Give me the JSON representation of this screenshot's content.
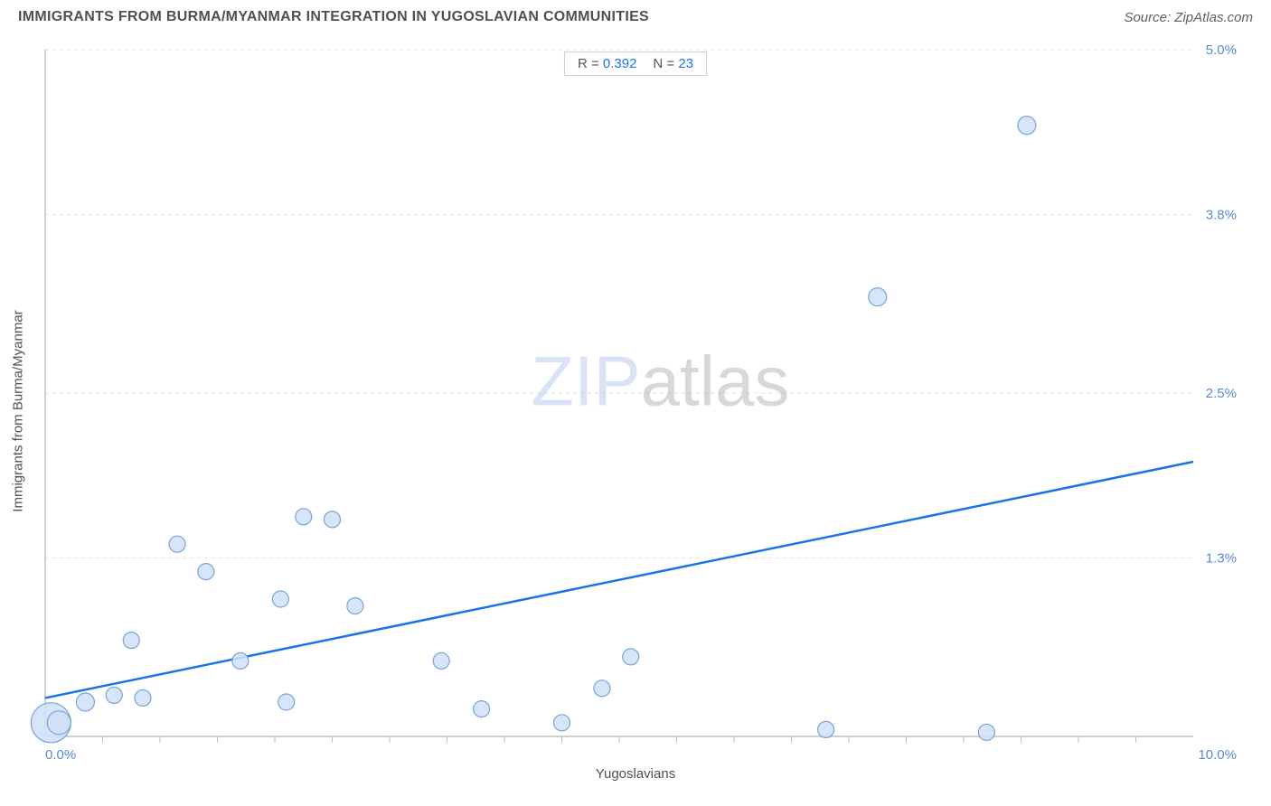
{
  "title": "IMMIGRANTS FROM BURMA/MYANMAR INTEGRATION IN YUGOSLAVIAN COMMUNITIES",
  "source": "Source: ZipAtlas.com",
  "watermark_zip": "ZIP",
  "watermark_atlas": "atlas",
  "stats": {
    "r_label": "R =",
    "r_value": "0.392",
    "n_label": "N =",
    "n_value": "23"
  },
  "chart": {
    "type": "scatter",
    "xlabel": "Yugoslavians",
    "ylabel": "Immigrants from Burma/Myanmar",
    "xlim": [
      0.0,
      10.0
    ],
    "ylim": [
      0.0,
      5.0
    ],
    "x_min_label": "0.0%",
    "x_max_label": "10.0%",
    "y_tick_values": [
      1.3,
      2.5,
      3.8,
      5.0
    ],
    "y_tick_labels": [
      "1.3%",
      "2.5%",
      "3.8%",
      "5.0%"
    ],
    "x_tick_values": [
      0.5,
      1.0,
      1.5,
      2.0,
      2.5,
      3.0,
      3.5,
      4.0,
      4.5,
      5.0,
      5.5,
      6.0,
      6.5,
      7.0,
      7.5,
      8.0,
      8.5,
      9.0,
      9.5
    ],
    "background_color": "#ffffff",
    "grid_color": "#e2e2e2",
    "axis_color": "#bfbfbf",
    "point_fill": "#cfe1f7",
    "point_stroke": "#7ba3d6",
    "trend_color": "#1a73e8",
    "trend_width": 2.5,
    "trend_line": {
      "x1": 0.0,
      "y1": 0.28,
      "x2": 10.0,
      "y2": 2.0
    },
    "points": [
      {
        "x": 0.05,
        "y": 0.1,
        "r": 22
      },
      {
        "x": 0.12,
        "y": 0.1,
        "r": 13
      },
      {
        "x": 0.35,
        "y": 0.25,
        "r": 10
      },
      {
        "x": 0.6,
        "y": 0.3,
        "r": 9
      },
      {
        "x": 0.85,
        "y": 0.28,
        "r": 9
      },
      {
        "x": 0.75,
        "y": 0.7,
        "r": 9
      },
      {
        "x": 1.15,
        "y": 1.4,
        "r": 9
      },
      {
        "x": 1.4,
        "y": 1.2,
        "r": 9
      },
      {
        "x": 1.7,
        "y": 0.55,
        "r": 9
      },
      {
        "x": 2.05,
        "y": 1.0,
        "r": 9
      },
      {
        "x": 2.1,
        "y": 0.25,
        "r": 9
      },
      {
        "x": 2.25,
        "y": 1.6,
        "r": 9
      },
      {
        "x": 2.5,
        "y": 1.58,
        "r": 9
      },
      {
        "x": 2.7,
        "y": 0.95,
        "r": 9
      },
      {
        "x": 3.45,
        "y": 0.55,
        "r": 9
      },
      {
        "x": 3.8,
        "y": 0.2,
        "r": 9
      },
      {
        "x": 4.5,
        "y": 0.1,
        "r": 9
      },
      {
        "x": 4.85,
        "y": 0.35,
        "r": 9
      },
      {
        "x": 5.1,
        "y": 0.58,
        "r": 9
      },
      {
        "x": 6.8,
        "y": 0.05,
        "r": 9
      },
      {
        "x": 7.25,
        "y": 3.2,
        "r": 10
      },
      {
        "x": 8.2,
        "y": 0.03,
        "r": 9
      },
      {
        "x": 8.55,
        "y": 4.45,
        "r": 10
      }
    ]
  }
}
